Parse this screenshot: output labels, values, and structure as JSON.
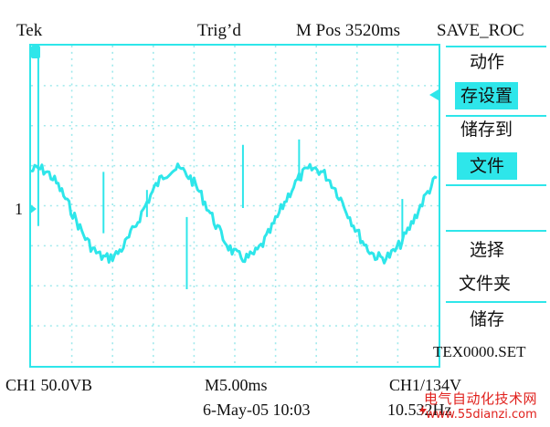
{
  "header": {
    "brand": "Tek",
    "trigger_status": "Trig’d",
    "m_pos": "M Pos 3520ms",
    "menu_title": "SAVE_ROC"
  },
  "screen": {
    "channel_marker": "1"
  },
  "menu": {
    "action": "动作",
    "store_setup": "存设置",
    "store_to": "储存到",
    "file": "文件",
    "select": "选择",
    "folder": "文件夹",
    "save": "储存",
    "filename": "TEX0000.SET"
  },
  "footer": {
    "ch1_scale": "CH1 50.0VB",
    "timebase": "M5.00ms",
    "trigger_level": "CH1/134V",
    "datetime": "6-May-05 10:03",
    "frequency": "10.532Hz"
  },
  "watermark": {
    "chinese": "电气自动化技术网",
    "url": "www.55dianzi.com"
  },
  "colors": {
    "trace": "#2ee6ea",
    "watermark": "#e0201c"
  }
}
